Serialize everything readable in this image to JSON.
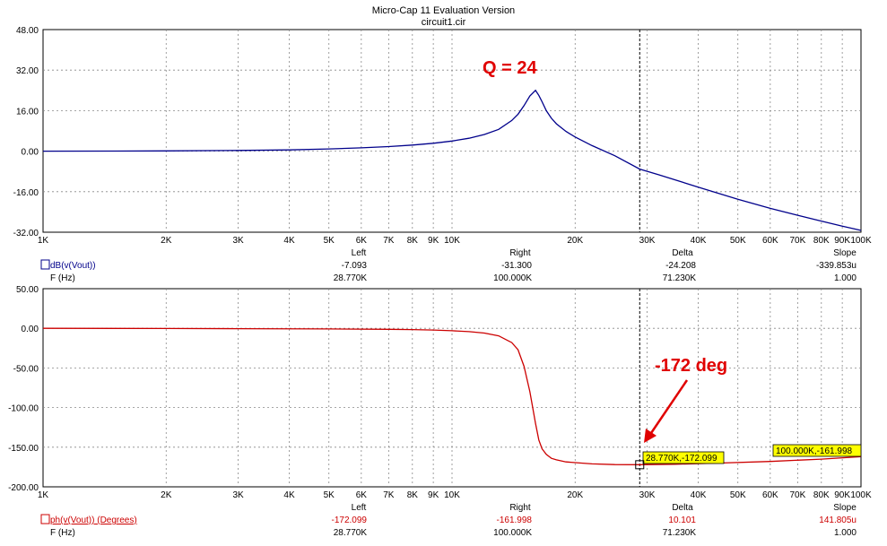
{
  "window": {
    "title": "Micro-Cap 11 Evaluation Version",
    "subtitle": "circuit1.cir"
  },
  "x_tick_labels": [
    "1K",
    "2K",
    "3K",
    "4K",
    "5K",
    "6K",
    "7K",
    "8K",
    "9K",
    "10K",
    "20K",
    "30K",
    "40K",
    "50K",
    "60K",
    "70K",
    "80K",
    "90K",
    "100K"
  ],
  "readout_headers": [
    "Left",
    "Right",
    "Delta",
    "Slope"
  ],
  "chart_data": [
    {
      "type": "line",
      "x_scale": "log",
      "xlim": [
        1000,
        100000
      ],
      "ylim": [
        -32,
        48
      ],
      "y_tick_labels": [
        "48.00",
        "32.00",
        "16.00",
        "0.00",
        "-16.00",
        "-32.00"
      ],
      "y_ticks": [
        48,
        32,
        16,
        0,
        -16,
        -32
      ],
      "grid": true,
      "series": [
        {
          "name": "dB(v(Vout))",
          "color": "#00008b",
          "x": [
            1000,
            1500,
            2000,
            3000,
            4000,
            5000,
            6000,
            7000,
            8000,
            9000,
            10000,
            11000,
            12000,
            13000,
            14000,
            14500,
            15000,
            15500,
            16000,
            16300,
            16600,
            17000,
            17500,
            18000,
            19000,
            20000,
            22000,
            25000,
            28770,
            32000,
            40000,
            50000,
            60000,
            70000,
            80000,
            90000,
            100000
          ],
          "y": [
            0.0,
            0.05,
            0.1,
            0.3,
            0.5,
            0.9,
            1.3,
            1.8,
            2.4,
            3.1,
            4.0,
            5.1,
            6.6,
            8.6,
            12.1,
            14.6,
            18.0,
            21.8,
            24.0,
            22.0,
            19.5,
            16.0,
            13.0,
            10.8,
            7.8,
            5.6,
            2.2,
            -1.8,
            -7.09,
            -9.3,
            -14.2,
            -19.0,
            -22.6,
            -25.3,
            -27.6,
            -29.6,
            -31.3
          ]
        }
      ],
      "annotations": [
        {
          "text": "Q = 24"
        }
      ],
      "cursor_x": 28770,
      "readout": {
        "expression": "dB(v(Vout))",
        "left": "-7.093",
        "right": "-31.300",
        "delta": "-24.208",
        "slope": "-339.853u",
        "x_label": "F (Hz)",
        "x_left": "28.770K",
        "x_right": "100.000K",
        "x_delta": "71.230K",
        "x_slope": "1.000"
      }
    },
    {
      "type": "line",
      "x_scale": "log",
      "xlim": [
        1000,
        100000
      ],
      "ylim": [
        -200,
        50
      ],
      "y_tick_labels": [
        "50.00",
        "0.00",
        "-50.00",
        "-100.00",
        "-150.00",
        "-200.00"
      ],
      "y_ticks": [
        50,
        0,
        -50,
        -100,
        -150,
        -200
      ],
      "grid": true,
      "series": [
        {
          "name": "ph(v(Vout)) (Degrees)",
          "color": "#cc0000",
          "x": [
            1000,
            2000,
            3000,
            5000,
            7000,
            8000,
            9000,
            10000,
            11000,
            12000,
            13000,
            14000,
            14500,
            15000,
            15500,
            16000,
            16300,
            16600,
            17000,
            17500,
            18000,
            19000,
            20000,
            22000,
            25000,
            28770,
            35000,
            45000,
            60000,
            80000,
            100000
          ],
          "y": [
            0,
            -0.2,
            -0.4,
            -0.8,
            -1.2,
            -1.6,
            -2.2,
            -3.0,
            -4.2,
            -6.0,
            -9.5,
            -18,
            -27,
            -48,
            -80,
            -120,
            -141,
            -152,
            -159,
            -164,
            -166,
            -168.5,
            -169.5,
            -171,
            -172,
            -172.1,
            -171.5,
            -170,
            -168,
            -165,
            -162
          ]
        }
      ],
      "annotations": [
        {
          "text": "-172 deg"
        }
      ],
      "cursor_x": 28770,
      "cursor_tags": [
        {
          "text": "28.770K,-172.099",
          "x": 28770,
          "y": -172.099
        },
        {
          "text": "100.000K,-161.998",
          "x": 100000,
          "y": -161.998
        }
      ],
      "readout": {
        "expression": "ph(v(Vout)) (Degrees)",
        "left": "-172.099",
        "right": "-161.998",
        "delta": "10.101",
        "slope": "141.805u",
        "x_label": "F (Hz)",
        "x_left": "28.770K",
        "x_right": "100.000K",
        "x_delta": "71.230K",
        "x_slope": "1.000"
      }
    }
  ]
}
